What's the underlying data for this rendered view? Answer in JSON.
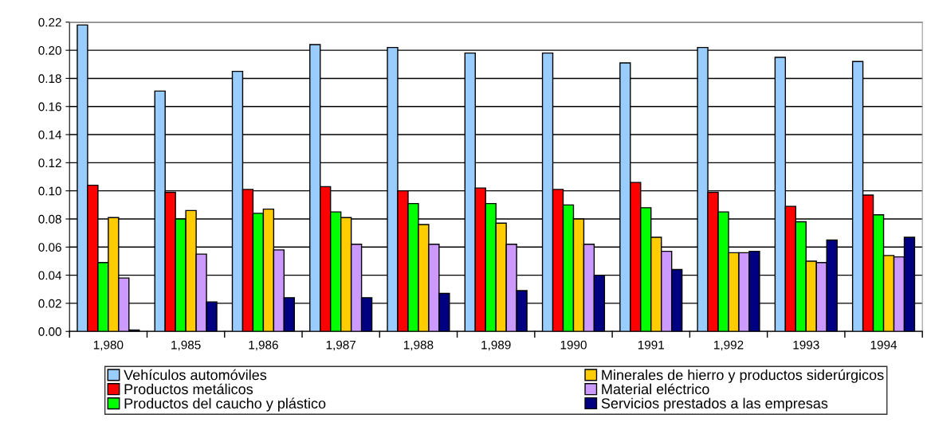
{
  "chart_data": {
    "type": "bar",
    "categories": [
      "1,980",
      "1,985",
      "1,986",
      "1,987",
      "1,988",
      "1,989",
      "1990",
      "1991",
      "1,992",
      "1993",
      "1994"
    ],
    "series": [
      {
        "name": "Vehículos automóviles",
        "color": "#99ccff",
        "values": [
          0.218,
          0.171,
          0.185,
          0.204,
          0.202,
          0.198,
          0.198,
          0.191,
          0.202,
          0.195,
          0.192
        ]
      },
      {
        "name": "Productos metálicos",
        "color": "#ff0000",
        "values": [
          0.104,
          0.099,
          0.101,
          0.103,
          0.1,
          0.102,
          0.101,
          0.106,
          0.099,
          0.089,
          0.097
        ]
      },
      {
        "name": "Productos del caucho y plástico",
        "color": "#00ff00",
        "values": [
          0.049,
          0.08,
          0.084,
          0.085,
          0.091,
          0.091,
          0.09,
          0.088,
          0.085,
          0.078,
          0.083
        ]
      },
      {
        "name": "Minerales de hierro y productos siderúrgicos",
        "color": "#ffcc00",
        "values": [
          0.081,
          0.086,
          0.087,
          0.081,
          0.076,
          0.077,
          0.08,
          0.067,
          0.056,
          0.05,
          0.054
        ]
      },
      {
        "name": "Material eléctrico",
        "color": "#cc99ff",
        "values": [
          0.038,
          0.055,
          0.058,
          0.062,
          0.062,
          0.062,
          0.062,
          0.057,
          0.056,
          0.049,
          0.053
        ]
      },
      {
        "name": "Servicios prestados a las empresas",
        "color": "#000080",
        "values": [
          0.001,
          0.021,
          0.024,
          0.024,
          0.027,
          0.029,
          0.04,
          0.044,
          0.057,
          0.065,
          0.067
        ]
      }
    ],
    "ylim": [
      0,
      0.22
    ],
    "yticks": [
      {
        "value": 0,
        "label": "0.00"
      },
      {
        "value": 0.02,
        "label": "0.02"
      },
      {
        "value": 0.04,
        "label": "0.04"
      },
      {
        "value": 0.06,
        "label": "0.06"
      },
      {
        "value": 0.08,
        "label": "0.08"
      },
      {
        "value": 0.1,
        "label": "0.10"
      },
      {
        "value": 0.12,
        "label": "0.12"
      },
      {
        "value": 0.14,
        "label": "0.14"
      },
      {
        "value": 0.16,
        "label": "0.16"
      },
      {
        "value": 0.18,
        "label": "0.18"
      },
      {
        "value": 0.2,
        "label": "0.20"
      },
      {
        "value": 0.22,
        "label": "0.22"
      }
    ],
    "grid": "y",
    "legend": "bottom"
  }
}
